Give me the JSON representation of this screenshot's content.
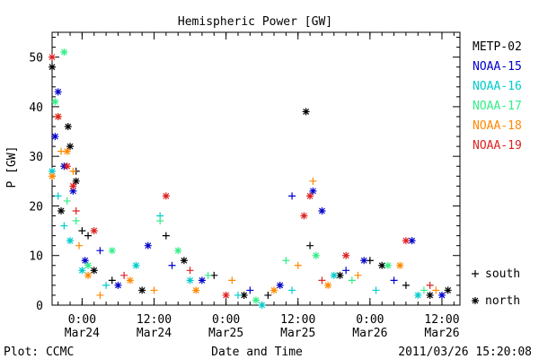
{
  "chart_data": {
    "type": "scatter",
    "title": "Hemispheric Power [GW]",
    "ylabel": "P [GW]",
    "xlabel": "Date and Time",
    "xlim": [
      "2011-03-23T19:00",
      "2011-03-26T15:00"
    ],
    "ylim": [
      0,
      55
    ],
    "yticks": [
      0,
      10,
      20,
      30,
      40,
      50
    ],
    "xticks": [
      {
        "t": "2011-03-24T00:00",
        "label1": "0:00",
        "label2": "Mar24"
      },
      {
        "t": "2011-03-24T12:00",
        "label1": "12:00",
        "label2": "Mar24"
      },
      {
        "t": "2011-03-25T00:00",
        "label1": "0:00",
        "label2": "Mar25"
      },
      {
        "t": "2011-03-25T12:00",
        "label1": "12:00",
        "label2": "Mar25"
      },
      {
        "t": "2011-03-26T00:00",
        "label1": "0:00",
        "label2": "Mar26"
      },
      {
        "t": "2011-03-26T12:00",
        "label1": "12:00",
        "label2": "Mar26"
      }
    ],
    "legend_position": "right",
    "marker_legend": [
      {
        "symbol": "+",
        "label": "south"
      },
      {
        "symbol": "*",
        "label": "north"
      }
    ],
    "series": [
      {
        "name": "METP-02",
        "color": "#000000",
        "points": [
          [
            "2011-03-23T19:00",
            48,
            "north"
          ],
          [
            "2011-03-23T20:30",
            19,
            "north"
          ],
          [
            "2011-03-23T21:40",
            36,
            "north"
          ],
          [
            "2011-03-23T22:00",
            32,
            "north"
          ],
          [
            "2011-03-23T23:00",
            25,
            "north"
          ],
          [
            "2011-03-23T23:00",
            27,
            "south"
          ],
          [
            "2011-03-24T00:00",
            15,
            "south"
          ],
          [
            "2011-03-24T01:00",
            14,
            "south"
          ],
          [
            "2011-03-24T02:00",
            7,
            "north"
          ],
          [
            "2011-03-24T05:00",
            5,
            "south"
          ],
          [
            "2011-03-24T10:00",
            3,
            "north"
          ],
          [
            "2011-03-24T14:00",
            14,
            "south"
          ],
          [
            "2011-03-24T17:00",
            9,
            "north"
          ],
          [
            "2011-03-24T22:00",
            6,
            "south"
          ],
          [
            "2011-03-25T03:00",
            2,
            "north"
          ],
          [
            "2011-03-25T07:00",
            2,
            "south"
          ],
          [
            "2011-03-25T13:20",
            39,
            "north"
          ],
          [
            "2011-03-25T14:00",
            12,
            "south"
          ],
          [
            "2011-03-25T19:00",
            6,
            "north"
          ],
          [
            "2011-03-26T00:00",
            9,
            "south"
          ],
          [
            "2011-03-26T02:00",
            8,
            "north"
          ],
          [
            "2011-03-26T06:00",
            4,
            "south"
          ],
          [
            "2011-03-26T10:00",
            2,
            "north"
          ],
          [
            "2011-03-26T13:00",
            3,
            "north"
          ]
        ]
      },
      {
        "name": "NOAA-15",
        "color": "#0000cc",
        "points": [
          [
            "2011-03-23T19:30",
            34,
            "north"
          ],
          [
            "2011-03-23T20:00",
            43,
            "north"
          ],
          [
            "2011-03-23T21:00",
            28,
            "north"
          ],
          [
            "2011-03-23T22:30",
            23,
            "north"
          ],
          [
            "2011-03-24T00:30",
            9,
            "north"
          ],
          [
            "2011-03-24T03:00",
            11,
            "south"
          ],
          [
            "2011-03-24T06:00",
            4,
            "north"
          ],
          [
            "2011-03-24T11:00",
            12,
            "north"
          ],
          [
            "2011-03-24T15:00",
            8,
            "south"
          ],
          [
            "2011-03-24T20:00",
            5,
            "north"
          ],
          [
            "2011-03-25T04:00",
            3,
            "south"
          ],
          [
            "2011-03-25T09:00",
            4,
            "north"
          ],
          [
            "2011-03-25T11:00",
            22,
            "south"
          ],
          [
            "2011-03-25T14:30",
            23,
            "north"
          ],
          [
            "2011-03-25T16:00",
            19,
            "north"
          ],
          [
            "2011-03-25T20:00",
            7,
            "south"
          ],
          [
            "2011-03-25T23:00",
            9,
            "north"
          ],
          [
            "2011-03-26T04:00",
            5,
            "south"
          ],
          [
            "2011-03-26T07:00",
            13,
            "north"
          ],
          [
            "2011-03-26T12:00",
            2,
            "north"
          ]
        ]
      },
      {
        "name": "NOAA-16",
        "color": "#00cccc",
        "points": [
          [
            "2011-03-23T19:00",
            27,
            "north"
          ],
          [
            "2011-03-23T20:00",
            22,
            "south"
          ],
          [
            "2011-03-23T21:00",
            16,
            "south"
          ],
          [
            "2011-03-23T22:00",
            13,
            "north"
          ],
          [
            "2011-03-24T00:00",
            7,
            "north"
          ],
          [
            "2011-03-24T04:00",
            4,
            "south"
          ],
          [
            "2011-03-24T09:00",
            8,
            "north"
          ],
          [
            "2011-03-24T13:00",
            18,
            "south"
          ],
          [
            "2011-03-24T18:00",
            5,
            "north"
          ],
          [
            "2011-03-25T02:00",
            2,
            "south"
          ],
          [
            "2011-03-25T06:00",
            0,
            "north"
          ],
          [
            "2011-03-25T11:00",
            3,
            "south"
          ],
          [
            "2011-03-25T18:00",
            6,
            "north"
          ],
          [
            "2011-03-26T01:00",
            3,
            "south"
          ],
          [
            "2011-03-26T08:00",
            2,
            "north"
          ]
        ]
      },
      {
        "name": "NOAA-17",
        "color": "#33ee88",
        "points": [
          [
            "2011-03-23T19:30",
            41,
            "north"
          ],
          [
            "2011-03-23T21:00",
            51,
            "north"
          ],
          [
            "2011-03-23T21:30",
            21,
            "south"
          ],
          [
            "2011-03-23T23:00",
            17,
            "south"
          ],
          [
            "2011-03-24T01:00",
            8,
            "north"
          ],
          [
            "2011-03-24T05:00",
            11,
            "north"
          ],
          [
            "2011-03-24T13:00",
            17,
            "south"
          ],
          [
            "2011-03-24T16:00",
            11,
            "north"
          ],
          [
            "2011-03-24T21:00",
            6,
            "south"
          ],
          [
            "2011-03-25T05:00",
            1,
            "north"
          ],
          [
            "2011-03-25T10:00",
            9,
            "south"
          ],
          [
            "2011-03-25T15:00",
            10,
            "north"
          ],
          [
            "2011-03-25T21:00",
            5,
            "south"
          ],
          [
            "2011-03-26T03:00",
            8,
            "north"
          ],
          [
            "2011-03-26T09:00",
            3,
            "south"
          ]
        ]
      },
      {
        "name": "NOAA-18",
        "color": "#ff8800",
        "points": [
          [
            "2011-03-23T19:00",
            26,
            "north"
          ],
          [
            "2011-03-23T20:00",
            38,
            "north"
          ],
          [
            "2011-03-23T20:30",
            31,
            "south"
          ],
          [
            "2011-03-23T21:30",
            31,
            "north"
          ],
          [
            "2011-03-23T22:30",
            27,
            "south"
          ],
          [
            "2011-03-23T23:30",
            12,
            "south"
          ],
          [
            "2011-03-24T01:00",
            6,
            "north"
          ],
          [
            "2011-03-24T03:00",
            2,
            "south"
          ],
          [
            "2011-03-24T08:00",
            5,
            "north"
          ],
          [
            "2011-03-24T12:00",
            3,
            "south"
          ],
          [
            "2011-03-24T19:00",
            3,
            "north"
          ],
          [
            "2011-03-25T01:00",
            5,
            "south"
          ],
          [
            "2011-03-25T08:00",
            3,
            "north"
          ],
          [
            "2011-03-25T12:00",
            8,
            "south"
          ],
          [
            "2011-03-25T14:30",
            25,
            "south"
          ],
          [
            "2011-03-25T17:00",
            4,
            "north"
          ],
          [
            "2011-03-25T22:00",
            6,
            "south"
          ],
          [
            "2011-03-26T05:00",
            8,
            "north"
          ],
          [
            "2011-03-26T11:00",
            3,
            "south"
          ]
        ]
      },
      {
        "name": "NOAA-19",
        "color": "#dd2222",
        "points": [
          [
            "2011-03-23T19:00",
            50,
            "north"
          ],
          [
            "2011-03-23T20:00",
            38,
            "north"
          ],
          [
            "2011-03-23T21:30",
            28,
            "north"
          ],
          [
            "2011-03-23T22:30",
            24,
            "north"
          ],
          [
            "2011-03-23T23:00",
            19,
            "south"
          ],
          [
            "2011-03-24T02:00",
            15,
            "north"
          ],
          [
            "2011-03-24T07:00",
            6,
            "south"
          ],
          [
            "2011-03-24T14:00",
            22,
            "north"
          ],
          [
            "2011-03-24T18:00",
            7,
            "south"
          ],
          [
            "2011-03-25T00:00",
            2,
            "north"
          ],
          [
            "2011-03-25T13:00",
            18,
            "north"
          ],
          [
            "2011-03-25T14:00",
            22,
            "north"
          ],
          [
            "2011-03-25T16:00",
            5,
            "south"
          ],
          [
            "2011-03-25T20:00",
            10,
            "north"
          ],
          [
            "2011-03-26T06:00",
            13,
            "north"
          ],
          [
            "2011-03-26T10:00",
            4,
            "south"
          ]
        ]
      }
    ]
  },
  "footer": {
    "plot_credit": "Plot: CCMC",
    "timestamp": "2011/03/26 15:20:08"
  }
}
